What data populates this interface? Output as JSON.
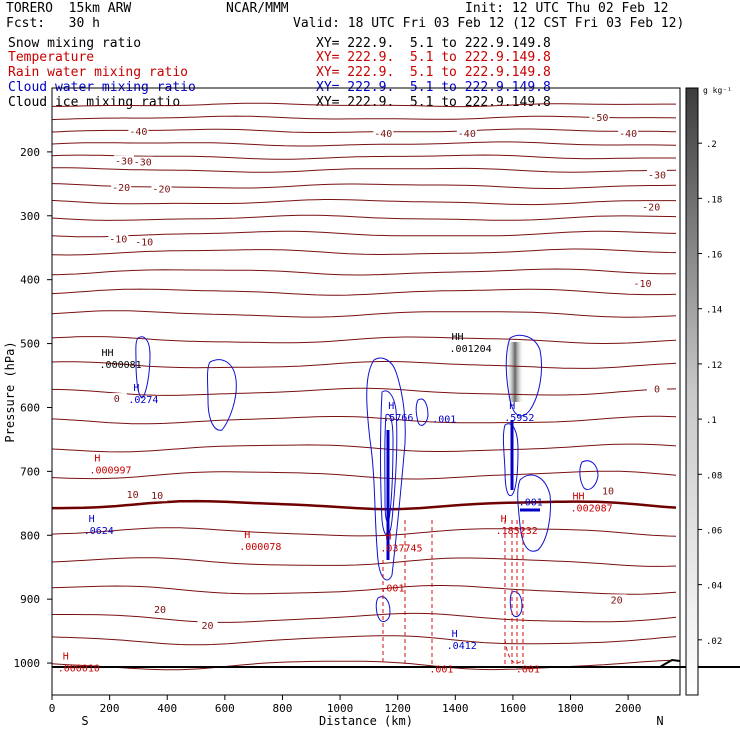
{
  "header": {
    "model": "TORERO  15km ARW",
    "org": "NCAR/MMM",
    "init": "Init: 12 UTC Thu 02 Feb 12",
    "fcst": "Fcst:   30 h",
    "valid": "Valid: 18 UTC Fri 03 Feb 12 (12 CST Fri 03 Feb 12)"
  },
  "fields": [
    {
      "label": "Snow mixing ratio",
      "xy": "XY= 222.9.  5.1 to 222.9.149.8",
      "color": "#000000"
    },
    {
      "label": "Temperature",
      "xy": "XY= 222.9.  5.1 to 222.9.149.8",
      "color": "#c80000"
    },
    {
      "label": "Rain water mixing ratio",
      "xy": "XY= 222.9.  5.1 to 222.9.149.8",
      "color": "#c80000"
    },
    {
      "label": "Cloud water mixing ratio",
      "xy": "XY= 222.9.  5.1 to 222.9.149.8",
      "color": "#0000c8"
    },
    {
      "label": "Cloud ice mixing ratio",
      "xy": "XY= 222.9.  5.1 to 222.9.149.8",
      "color": "#000000"
    }
  ],
  "colorbar": {
    "unit": "g kg⁻¹",
    "ticks": [
      ".02",
      ".04",
      ".06",
      ".08",
      ".1",
      ".12",
      ".14",
      ".16",
      ".18",
      ".2"
    ]
  },
  "chart_data": {
    "type": "cross-section contour",
    "xlabel": "Distance (km)",
    "ylabel": "Pressure (hPa)",
    "x_ticks": [
      0,
      200,
      400,
      600,
      800,
      1000,
      1200,
      1400,
      1600,
      1800,
      2000
    ],
    "y_ticks": [
      200,
      300,
      400,
      500,
      600,
      700,
      800,
      900,
      1000
    ],
    "xlim": [
      0,
      2180
    ],
    "ylim": [
      1050,
      100
    ],
    "x_end_labels": {
      "left": "S",
      "right": "N"
    },
    "temperature_labels": [
      {
        "text": "-50",
        "x": 1900,
        "p": 150
      },
      {
        "text": "-40",
        "x": 300,
        "p": 172
      },
      {
        "text": "-40",
        "x": 1150,
        "p": 175
      },
      {
        "text": "-40",
        "x": 1440,
        "p": 175
      },
      {
        "text": "-40",
        "x": 2000,
        "p": 175
      },
      {
        "text": "-30",
        "x": 250,
        "p": 218
      },
      {
        "text": "-30",
        "x": 315,
        "p": 220
      },
      {
        "text": "-30",
        "x": 2100,
        "p": 240
      },
      {
        "text": "-20",
        "x": 240,
        "p": 260
      },
      {
        "text": "-20",
        "x": 380,
        "p": 262
      },
      {
        "text": "-20",
        "x": 2080,
        "p": 290
      },
      {
        "text": "-10",
        "x": 230,
        "p": 340
      },
      {
        "text": "-10",
        "x": 320,
        "p": 345
      },
      {
        "text": "-10",
        "x": 2050,
        "p": 410
      },
      {
        "text": "0",
        "x": 225,
        "p": 590
      },
      {
        "text": "0",
        "x": 2100,
        "p": 575
      },
      {
        "text": "10",
        "x": 280,
        "p": 740
      },
      {
        "text": "10",
        "x": 365,
        "p": 742
      },
      {
        "text": "10",
        "x": 1930,
        "p": 735
      },
      {
        "text": "20",
        "x": 375,
        "p": 920
      },
      {
        "text": "20",
        "x": 540,
        "p": 945
      },
      {
        "text": "20",
        "x": 1960,
        "p": 905
      }
    ],
    "extrema_labels": [
      {
        "mark": "HH",
        "value": ".000081",
        "x": 165,
        "p": 535,
        "color": "#000000"
      },
      {
        "mark": "HH",
        "value": ".001204",
        "x": 1380,
        "p": 510,
        "color": "#000000"
      },
      {
        "mark": "H",
        "value": ".0274",
        "x": 265,
        "p": 590,
        "color": "#0000c8"
      },
      {
        "mark": "H",
        "value": ".5766",
        "x": 1150,
        "p": 618,
        "color": "#0000c8"
      },
      {
        "mark": "",
        "value": ".001",
        "x": 1320,
        "p": 620,
        "color": "#0000c8"
      },
      {
        "mark": "H",
        "value": ".5952",
        "x": 1570,
        "p": 618,
        "color": "#0000c8"
      },
      {
        "mark": "",
        "value": ".001",
        "x": 1620,
        "p": 750,
        "color": "#0000c8"
      },
      {
        "mark": "H",
        "value": ".000997",
        "x": 130,
        "p": 700,
        "color": "#c80000"
      },
      {
        "mark": "HH",
        "value": ".002087",
        "x": 1800,
        "p": 760,
        "color": "#c80000"
      },
      {
        "mark": "H",
        "value": ".0624",
        "x": 110,
        "p": 795,
        "color": "#0000c8"
      },
      {
        "mark": "H",
        "value": ".000078",
        "x": 650,
        "p": 820,
        "color": "#c80000"
      },
      {
        "mark": "H",
        "value": ".037745",
        "x": 1140,
        "p": 822,
        "color": "#c80000"
      },
      {
        "mark": "H",
        "value": ".185232",
        "x": 1540,
        "p": 795,
        "color": "#c80000"
      },
      {
        "mark": "",
        "value": ".001",
        "x": 1140,
        "p": 885,
        "color": "#c80000"
      },
      {
        "mark": "H",
        "value": ".0412",
        "x": 1370,
        "p": 975,
        "color": "#0000c8"
      },
      {
        "mark": "H",
        "value": ".000010",
        "x": 20,
        "p": 1010,
        "color": "#c80000"
      },
      {
        "mark": "",
        "value": ".001",
        "x": 1310,
        "p": 1012,
        "color": "#c80000"
      },
      {
        "mark": "",
        "value": ".001",
        "x": 1610,
        "p": 1012,
        "color": "#c80000"
      }
    ]
  }
}
